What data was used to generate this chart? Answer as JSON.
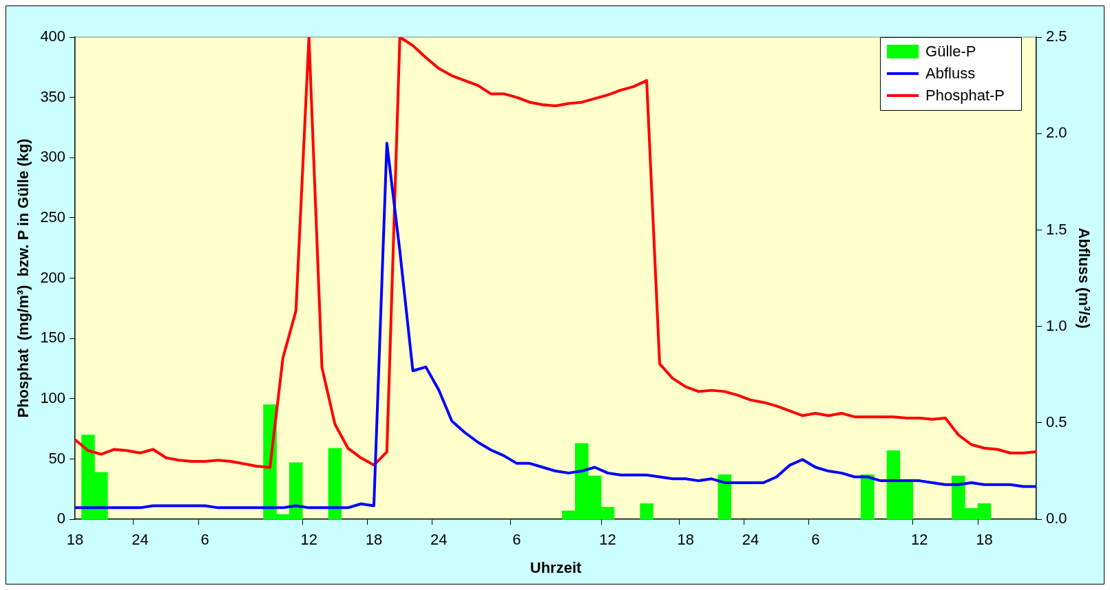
{
  "chart_data": {
    "type": "line",
    "xlabel": "Uhrzeit",
    "ylabel": "Phosphat  (mg/m³)  bzw. P in Gülle (kg)",
    "y2label": "Abfluss (m³/s)",
    "categories": [
      "18",
      null,
      null,
      null,
      null,
      "24",
      null,
      null,
      null,
      null,
      "6",
      null,
      null,
      null,
      null,
      null,
      null,
      null,
      "12",
      null,
      null,
      null,
      null,
      "18",
      null,
      null,
      null,
      null,
      "24",
      null,
      null,
      null,
      null,
      null,
      "6",
      null,
      null,
      null,
      null,
      null,
      null,
      "12",
      null,
      null,
      null,
      null,
      null,
      "18",
      null,
      null,
      null,
      null,
      "24",
      null,
      null,
      null,
      null,
      "6",
      null,
      null,
      null,
      null,
      null,
      null,
      null,
      "12",
      null,
      null,
      null,
      null,
      "18",
      null,
      null,
      null,
      null
    ],
    "series": [
      {
        "name": "Gülle-P",
        "type": "bar",
        "color": "#00ff00",
        "values": [
          null,
          70,
          39,
          null,
          null,
          null,
          null,
          null,
          null,
          null,
          null,
          null,
          null,
          null,
          null,
          95,
          4,
          47,
          null,
          null,
          59,
          null,
          null,
          null,
          null,
          null,
          null,
          null,
          null,
          null,
          null,
          null,
          null,
          null,
          null,
          null,
          null,
          null,
          7,
          63,
          36,
          10,
          null,
          null,
          13,
          null,
          null,
          null,
          null,
          null,
          37,
          null,
          null,
          null,
          null,
          null,
          null,
          null,
          null,
          null,
          null,
          37,
          null,
          57,
          32,
          null,
          null,
          null,
          36,
          9,
          13,
          null,
          null,
          null,
          null
        ]
      },
      {
        "name": "Abfluss",
        "type": "line",
        "axis": "y2",
        "color": "#0000ff",
        "values": [
          0.06,
          0.06,
          0.06,
          0.06,
          0.06,
          0.06,
          0.07,
          0.07,
          0.07,
          0.07,
          0.07,
          0.06,
          0.06,
          0.06,
          0.06,
          0.06,
          0.06,
          0.07,
          0.06,
          0.06,
          0.06,
          0.06,
          0.08,
          0.07,
          1.95,
          1.39,
          0.77,
          0.79,
          0.67,
          0.51,
          0.45,
          0.4,
          0.36,
          0.33,
          0.29,
          0.29,
          0.27,
          0.25,
          0.24,
          0.25,
          0.27,
          0.24,
          0.23,
          0.23,
          0.23,
          0.22,
          0.21,
          0.21,
          0.2,
          0.21,
          0.19,
          0.19,
          0.19,
          0.19,
          0.22,
          0.28,
          0.31,
          0.27,
          0.25,
          0.24,
          0.22,
          0.22,
          0.2,
          0.2,
          0.2,
          0.2,
          0.19,
          0.18,
          0.18,
          0.19,
          0.18,
          0.18,
          0.18,
          0.17,
          0.17
        ]
      },
      {
        "name": "Phosphat-P",
        "color": "#ff0000",
        "values": [
          66,
          57,
          54,
          58,
          57,
          55,
          58,
          51,
          49,
          48,
          48,
          49,
          48,
          46,
          44,
          43,
          134,
          173,
          400,
          126,
          79,
          59,
          51,
          45,
          56,
          400,
          393,
          383,
          374,
          368,
          364,
          360,
          353,
          353,
          350,
          346,
          344,
          343,
          345,
          346,
          349,
          352,
          356,
          359,
          364,
          129,
          117,
          110,
          106,
          107,
          106,
          103,
          99,
          97,
          94,
          90,
          86,
          88,
          86,
          88,
          85,
          85,
          85,
          85,
          84,
          84,
          83,
          84,
          70,
          62,
          59,
          58,
          55,
          55,
          56
        ]
      }
    ],
    "ylim": [
      0,
      400
    ],
    "yticks": [
      0,
      50,
      100,
      150,
      200,
      250,
      300,
      350,
      400
    ],
    "y2lim": [
      0,
      2.5
    ],
    "y2ticks": [
      {
        "value": 0,
        "label": "0.0"
      },
      {
        "value": 0.5,
        "label": "0.5"
      },
      {
        "value": 1,
        "label": "1.0"
      },
      {
        "value": 1.5,
        "label": "1.5"
      },
      {
        "value": 2,
        "label": "2.0"
      },
      {
        "value": 2.5,
        "label": "2.5"
      }
    ],
    "grid": false,
    "legend": "top right",
    "marker": "none",
    "line_style": "solid"
  }
}
